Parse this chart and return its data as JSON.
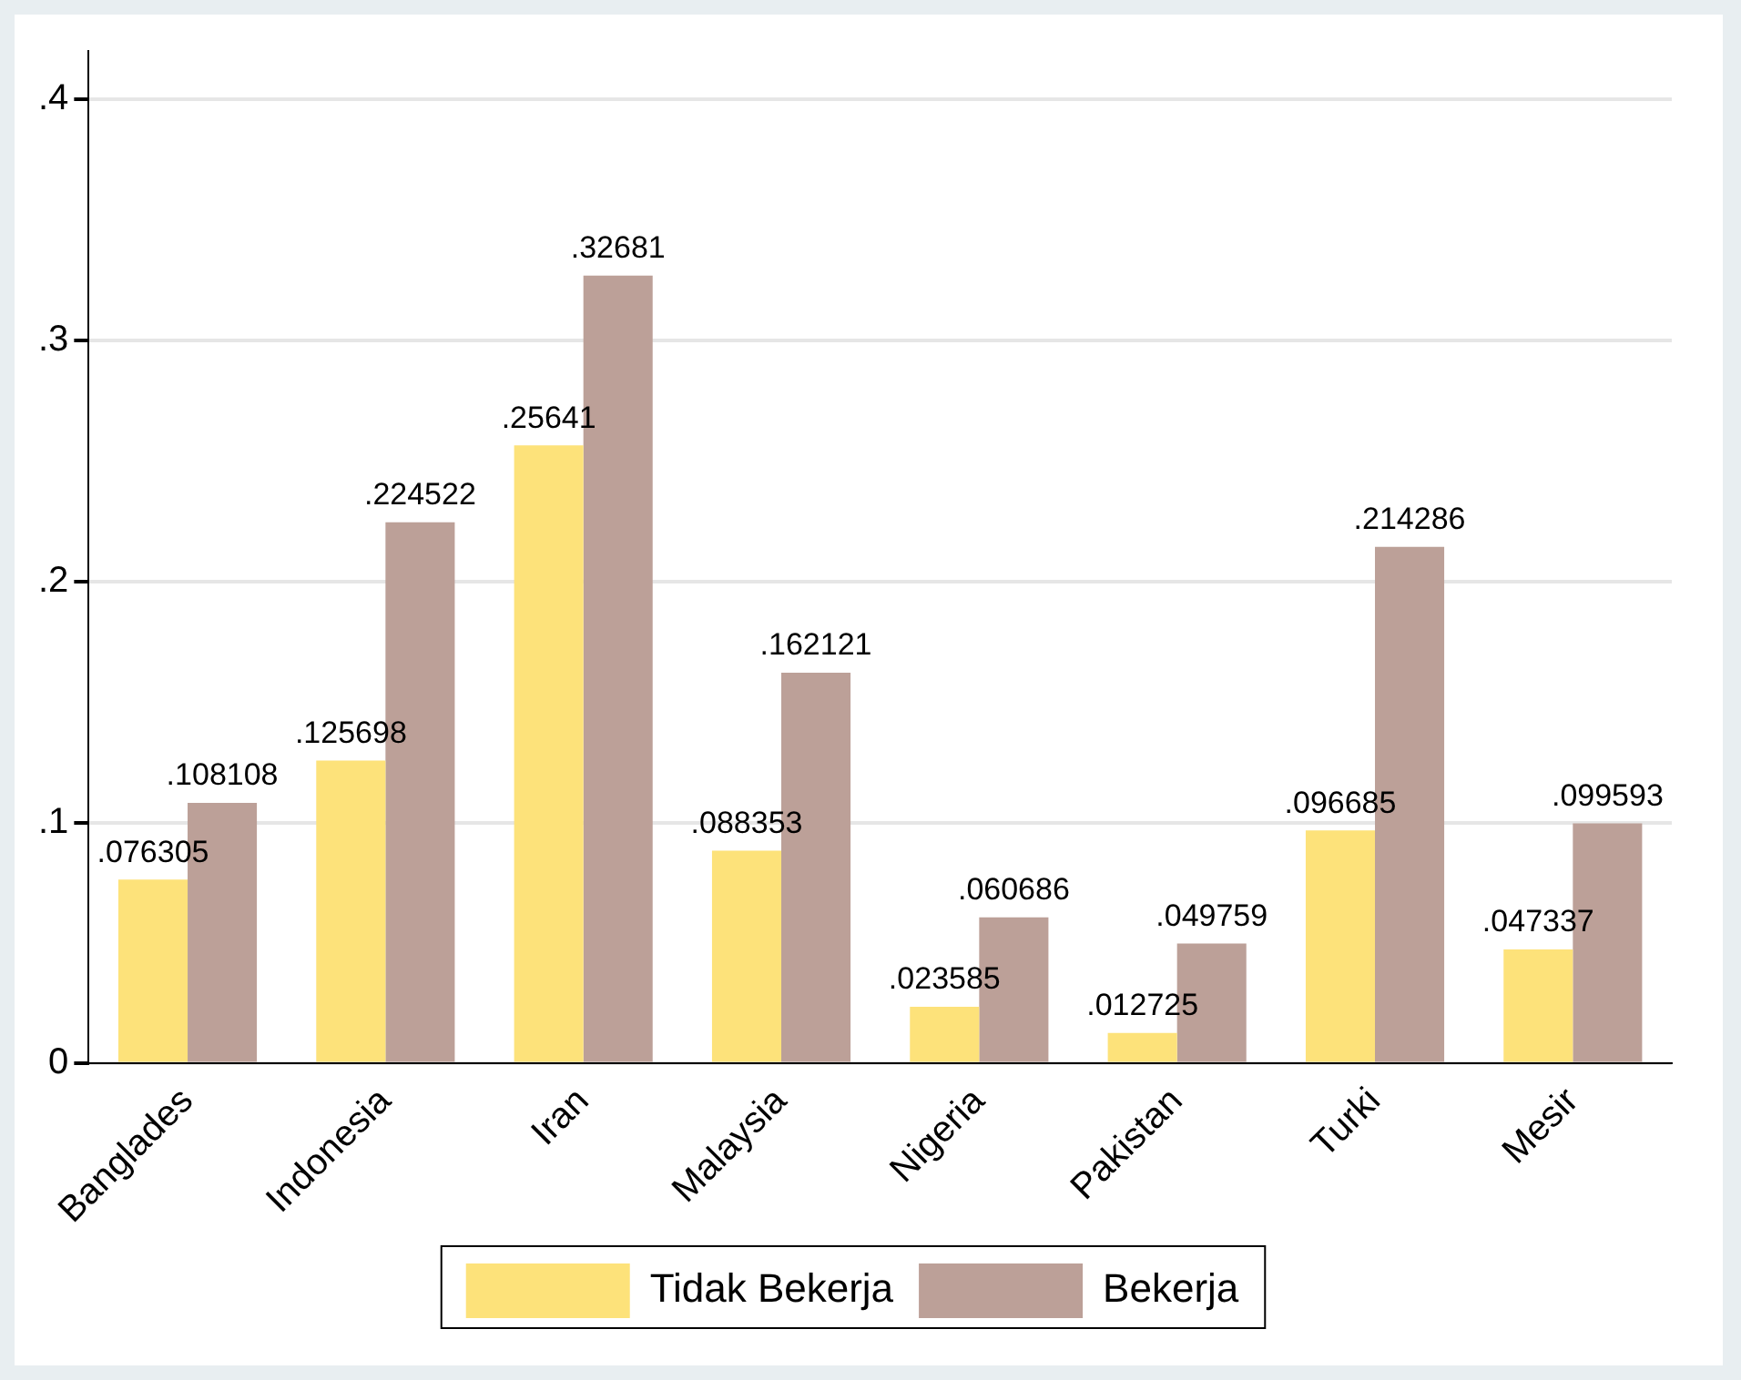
{
  "chart_data": {
    "type": "bar",
    "categories": [
      "Banglades",
      "Indonesia",
      "Iran",
      "Malaysia",
      "Nigeria",
      "Pakistan",
      "Turki",
      "Mesir"
    ],
    "series": [
      {
        "name": "Tidak Bekerja",
        "color": "#fde27a",
        "values": [
          0.076305,
          0.125698,
          0.25641,
          0.088353,
          0.023585,
          0.012725,
          0.096685,
          0.047337
        ],
        "value_labels": [
          ".076305",
          ".125698",
          ".25641",
          ".088353",
          ".023585",
          ".012725",
          ".096685",
          ".047337"
        ]
      },
      {
        "name": "Bekerja",
        "color": "#bca098",
        "values": [
          0.108108,
          0.224522,
          0.32681,
          0.162121,
          0.060686,
          0.049759,
          0.214286,
          0.099593
        ],
        "value_labels": [
          ".108108",
          ".224522",
          ".32681",
          ".162121",
          ".060686",
          ".049759",
          ".214286",
          ".099593"
        ]
      }
    ],
    "ylim": [
      0,
      0.42
    ],
    "yticks": [
      0,
      {
        "value": 0.1,
        "label": ".1"
      },
      {
        "value": 0.2,
        "label": ".2"
      },
      {
        "value": 0.3,
        "label": ".3"
      },
      {
        "value": 0.4,
        "label": ".4"
      }
    ],
    "grid": "y",
    "legend": "bottom"
  }
}
